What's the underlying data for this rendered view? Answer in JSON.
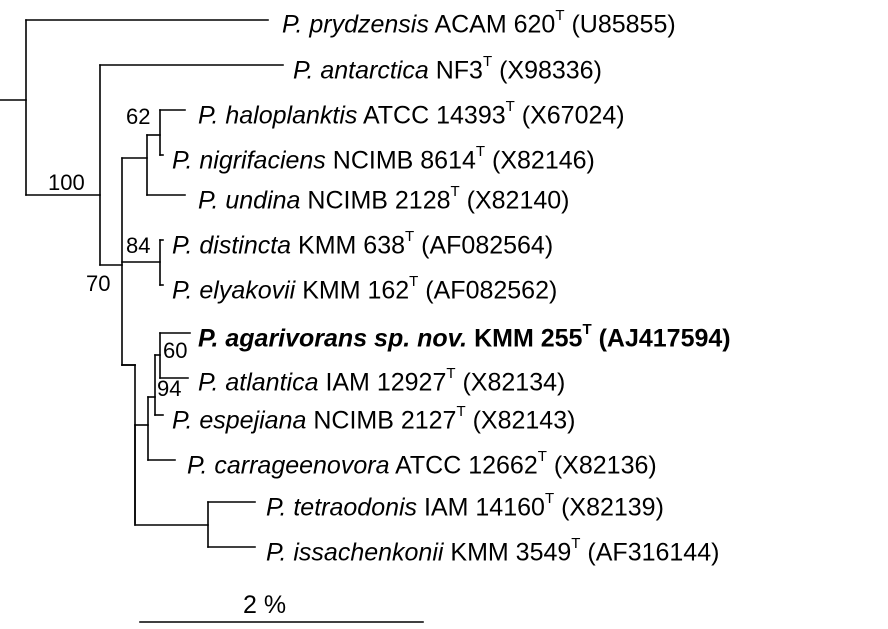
{
  "taxa": [
    {
      "id": "prydzensis",
      "genus": "P.",
      "species": "prydzensis",
      "strain": "ACAM 620",
      "type": "T",
      "acc": "(U85855)"
    },
    {
      "id": "antarctica",
      "genus": "P.",
      "species": "antarctica",
      "strain": "NF3",
      "type": "T",
      "acc": "(X98336)"
    },
    {
      "id": "haloplanktis",
      "genus": "P.",
      "species": "haloplanktis",
      "strain": "ATCC 14393",
      "type": "T",
      "acc": "(X67024)"
    },
    {
      "id": "nigrifaciens",
      "genus": "P.",
      "species": "nigrifaciens",
      "strain": "NCIMB 8614",
      "type": "T",
      "acc": "(X82146)"
    },
    {
      "id": "undina",
      "genus": "P.",
      "species": "undina",
      "strain": "NCIMB 2128",
      "type": "T",
      "acc": "(X82140)"
    },
    {
      "id": "distincta",
      "genus": "P.",
      "species": "distincta",
      "strain": "KMM 638",
      "type": "T",
      "acc": "(AF082564)"
    },
    {
      "id": "elyakovii",
      "genus": "P.",
      "species": "elyakovii",
      "strain": "KMM 162",
      "type": "T",
      "acc": "(AF082562)"
    },
    {
      "id": "agarivorans",
      "genus": "P.",
      "species": "agarivorans sp. nov.",
      "strain": "KMM 255",
      "type": "T",
      "acc": "(AJ417594)"
    },
    {
      "id": "atlantica",
      "genus": "P.",
      "species": "atlantica",
      "strain": "IAM 12927",
      "type": "T",
      "acc": "(X82134)"
    },
    {
      "id": "espejiana",
      "genus": "P.",
      "species": "espejiana",
      "strain": "NCIMB 2127",
      "type": "T",
      "acc": "(X82143)"
    },
    {
      "id": "carrageenovora",
      "genus": "P.",
      "species": "carrageenovora",
      "strain": "ATCC 12662",
      "type": "T",
      "acc": "(X82136)"
    },
    {
      "id": "tetraodonis",
      "genus": "P.",
      "species": "tetraodonis",
      "strain": "IAM 14160",
      "type": "T",
      "acc": "(X82139)"
    },
    {
      "id": "issachenkonii",
      "genus": "P.",
      "species": "issachenkonii",
      "strain": "KMM 3549",
      "type": "T",
      "acc": "(AF316144)"
    }
  ],
  "bootstrap": {
    "b62": "62",
    "b100": "100",
    "b84": "84",
    "b70": "70",
    "b60": "60",
    "b94": "94"
  },
  "scale": {
    "label": "2 %"
  },
  "colors": {
    "line": "#000000",
    "text": "#000000",
    "background": "#ffffff"
  }
}
